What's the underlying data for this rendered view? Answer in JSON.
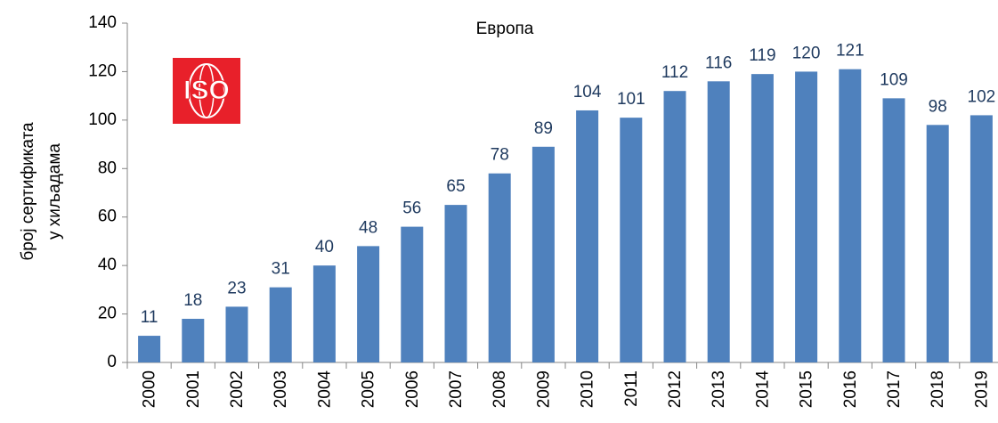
{
  "chart_data": {
    "type": "bar",
    "title": "Европа",
    "ylabel": [
      "број сертификата",
      "у хиљадама"
    ],
    "logo_text": "ISO",
    "categories": [
      "2000",
      "2001",
      "2002",
      "2003",
      "2004",
      "2005",
      "2006",
      "2007",
      "2008",
      "2009",
      "2010",
      "2011",
      "2012",
      "2013",
      "2014",
      "2015",
      "2016",
      "2017",
      "2018",
      "2019"
    ],
    "values": [
      11,
      18,
      23,
      31,
      40,
      48,
      56,
      65,
      78,
      89,
      104,
      101,
      112,
      116,
      119,
      120,
      121,
      109,
      98,
      102
    ],
    "color": "#4f81bd",
    "ylim": [
      0,
      140
    ],
    "yticks": [
      0,
      20,
      40,
      60,
      80,
      100,
      120,
      140
    ],
    "grid": false
  }
}
